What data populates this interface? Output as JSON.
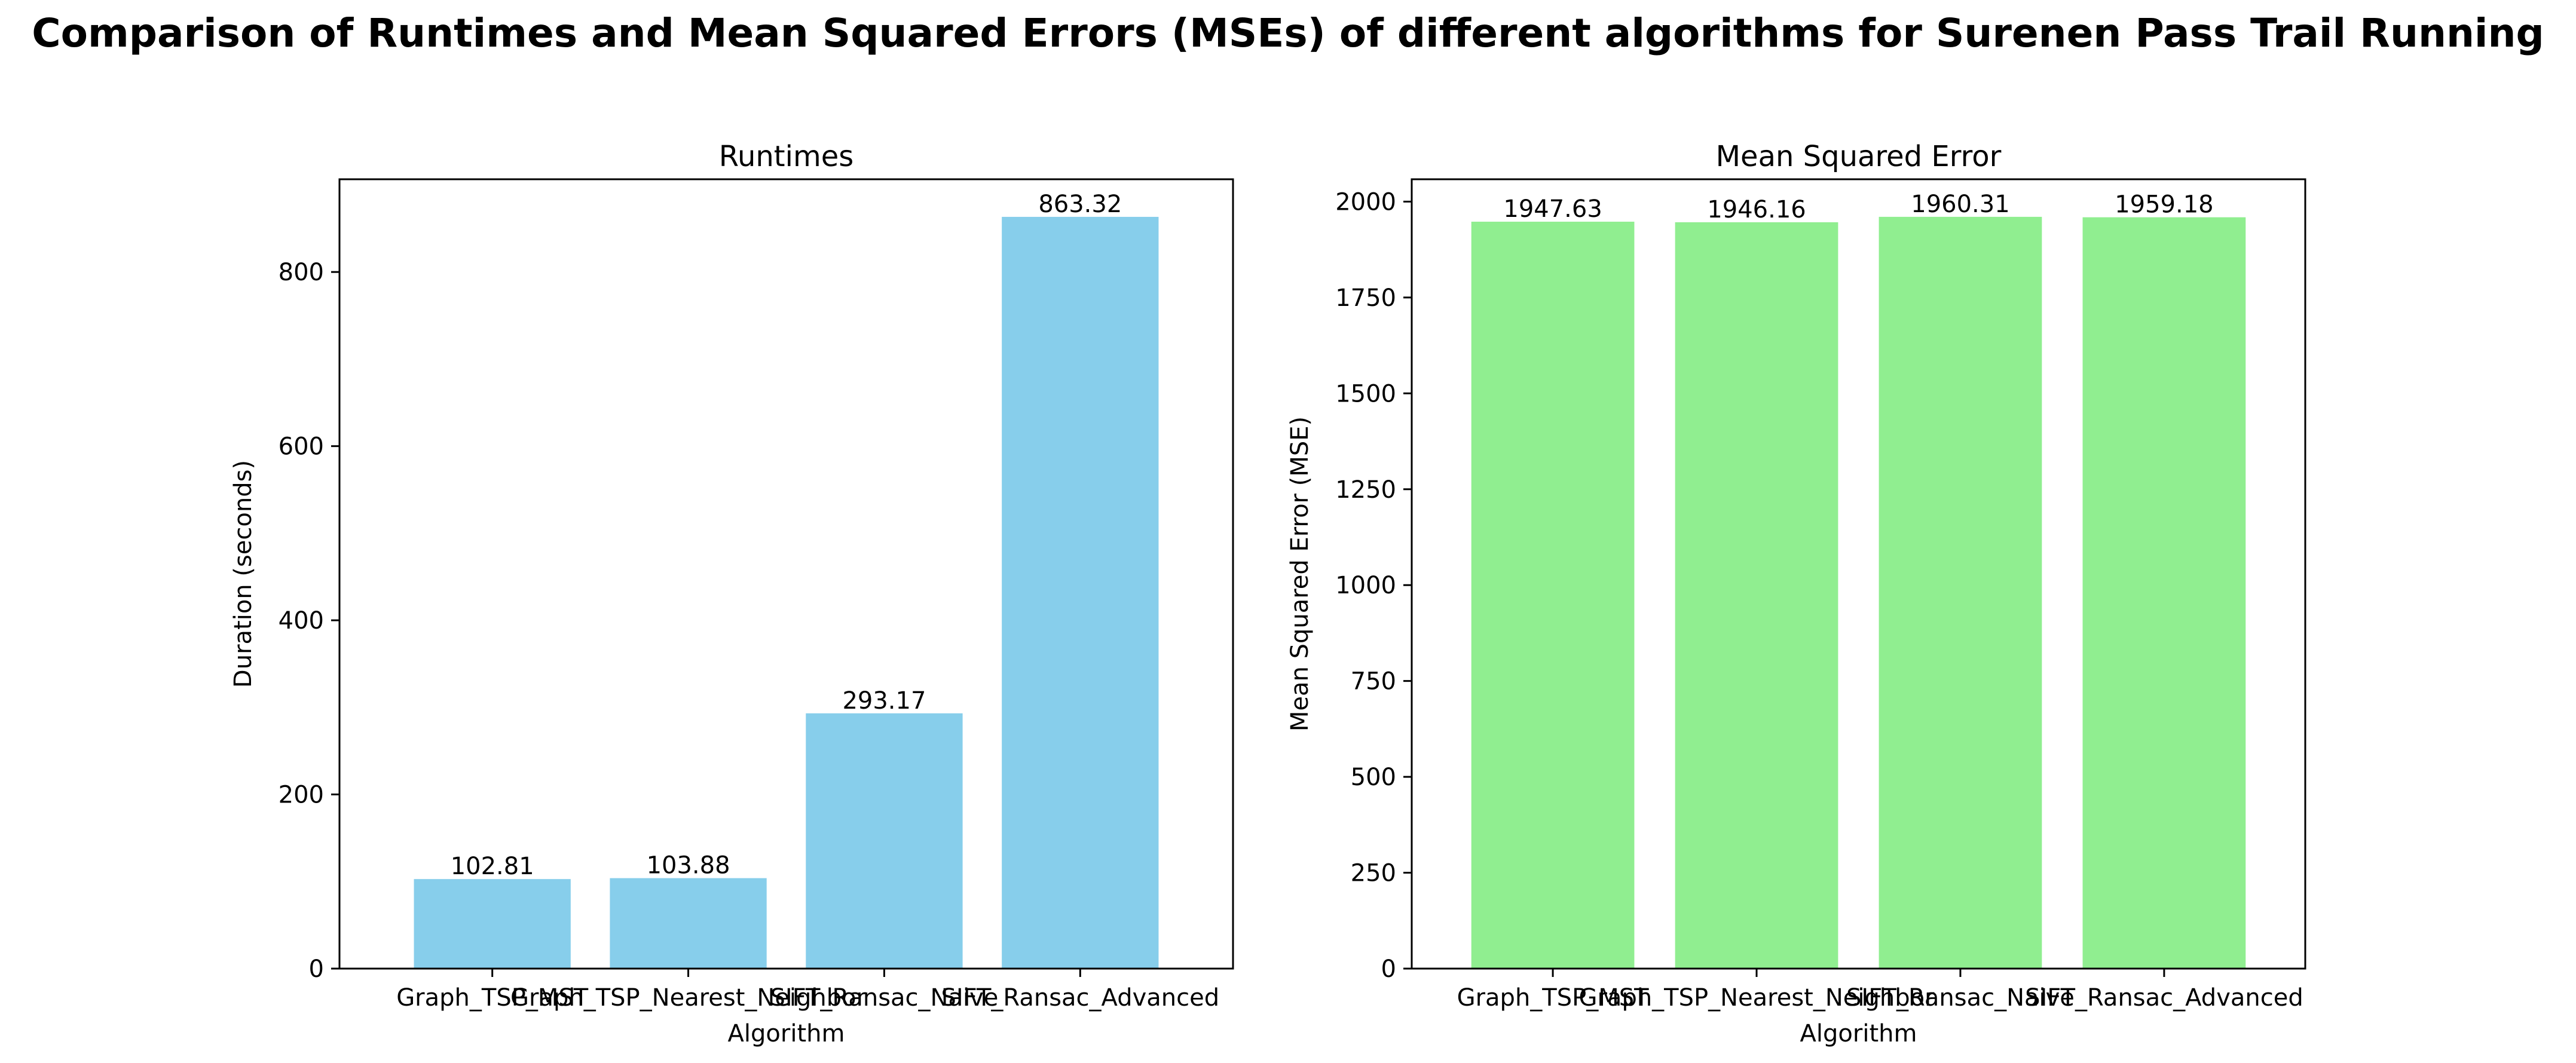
{
  "figure": {
    "suptitle": "Comparison of Runtimes and Mean Squared Errors (MSEs) of different algorithms for Surenen Pass Trail Running"
  },
  "chart_data": [
    {
      "type": "bar",
      "title": "Runtimes",
      "xlabel": "Algorithm",
      "ylabel": "Duration (seconds)",
      "categories": [
        "Graph_TSP_MST",
        "Graph_TSP_Nearest_Neighbor",
        "SIFT_Ransac_Naive",
        "SIFT_Ransac_Advanced"
      ],
      "values": [
        102.81,
        103.88,
        293.17,
        863.32
      ],
      "value_labels": [
        "102.81",
        "103.88",
        "293.17",
        "863.32"
      ],
      "yticks": [
        0,
        200,
        400,
        600,
        800
      ],
      "ylim": [
        0,
        906.5
      ],
      "color": "#87ceeb",
      "grid": false,
      "legend": "none"
    },
    {
      "type": "bar",
      "title": "Mean Squared Error",
      "xlabel": "Algorithm",
      "ylabel": "Mean Squared Error (MSE)",
      "categories": [
        "Graph_TSP_MST",
        "Graph_TSP_Nearest_Neighbor",
        "SIFT_Ransac_Naive",
        "SIFT_Ransac_Advanced"
      ],
      "values": [
        1947.63,
        1946.16,
        1960.31,
        1959.18
      ],
      "value_labels": [
        "1947.63",
        "1946.16",
        "1960.31",
        "1959.18"
      ],
      "yticks": [
        0,
        250,
        500,
        750,
        1000,
        1250,
        1500,
        1750,
        2000
      ],
      "ylim": [
        0,
        2058.3
      ],
      "color": "#90ee90",
      "grid": false,
      "legend": "none"
    }
  ]
}
